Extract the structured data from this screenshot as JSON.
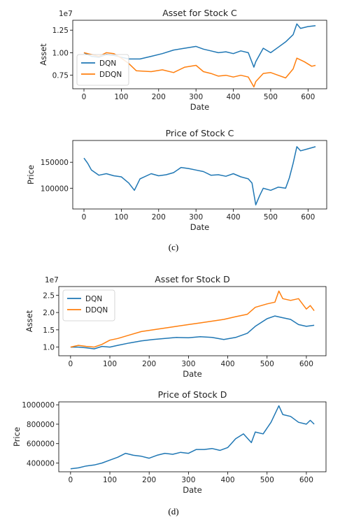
{
  "captions": {
    "c": "(c)",
    "d": "(d)"
  },
  "colors": {
    "dqn": "#1f77b4",
    "ddqn": "#ff7f0e"
  },
  "chart_data": [
    {
      "id": "asset_c",
      "type": "line",
      "title": "Asset for Stock C",
      "xlabel": "Date",
      "ylabel": "Asset",
      "offset_text": "1e7",
      "xlim": [
        -30,
        650
      ],
      "ylim": [
        0.6,
        1.36
      ],
      "xticks": [
        0,
        100,
        200,
        300,
        400,
        500,
        600
      ],
      "yticks": [
        0.75,
        1.0,
        1.25
      ],
      "ytick_labels": [
        "0.75",
        "1.00",
        "1.25"
      ],
      "legend": "lower-left",
      "series": [
        {
          "name": "DQN",
          "color": "#1f77b4",
          "x": [
            0,
            20,
            40,
            60,
            80,
            100,
            120,
            150,
            180,
            210,
            240,
            270,
            300,
            320,
            340,
            360,
            380,
            400,
            420,
            440,
            455,
            460,
            480,
            500,
            520,
            540,
            560,
            570,
            580,
            600,
            620
          ],
          "y": [
            1.0,
            0.96,
            0.95,
            0.98,
            0.97,
            0.95,
            0.93,
            0.93,
            0.96,
            0.99,
            1.03,
            1.05,
            1.07,
            1.04,
            1.02,
            1.0,
            1.01,
            0.99,
            1.02,
            1.0,
            0.84,
            0.9,
            1.05,
            1.0,
            1.06,
            1.12,
            1.2,
            1.32,
            1.27,
            1.29,
            1.3
          ]
        },
        {
          "name": "DDQN",
          "color": "#ff7f0e",
          "x": [
            0,
            20,
            40,
            60,
            80,
            100,
            120,
            140,
            180,
            210,
            240,
            270,
            300,
            320,
            340,
            360,
            380,
            400,
            420,
            440,
            455,
            460,
            480,
            500,
            520,
            540,
            560,
            570,
            590,
            610,
            620
          ],
          "y": [
            1.0,
            0.98,
            0.96,
            1.0,
            0.99,
            0.94,
            0.88,
            0.8,
            0.79,
            0.81,
            0.78,
            0.84,
            0.86,
            0.79,
            0.77,
            0.74,
            0.75,
            0.73,
            0.75,
            0.73,
            0.62,
            0.68,
            0.77,
            0.78,
            0.75,
            0.72,
            0.82,
            0.94,
            0.9,
            0.85,
            0.86
          ]
        }
      ]
    },
    {
      "id": "price_c",
      "type": "line",
      "title": "Price of Stock C",
      "xlabel": "Date",
      "ylabel": "Price",
      "xlim": [
        -30,
        650
      ],
      "ylim": [
        60000,
        192000
      ],
      "xticks": [
        0,
        100,
        200,
        300,
        400,
        500,
        600
      ],
      "yticks": [
        100000,
        150000
      ],
      "ytick_labels": [
        "100000",
        "150000"
      ],
      "series": [
        {
          "name": "",
          "color": "#1f77b4",
          "x": [
            0,
            10,
            20,
            40,
            60,
            80,
            100,
            120,
            135,
            150,
            180,
            200,
            220,
            240,
            260,
            280,
            300,
            320,
            340,
            360,
            380,
            400,
            420,
            440,
            450,
            460,
            470,
            480,
            500,
            520,
            540,
            550,
            560,
            570,
            580,
            600,
            620
          ],
          "y": [
            158000,
            148000,
            135000,
            125000,
            128000,
            124000,
            122000,
            110000,
            96000,
            118000,
            128000,
            124000,
            126000,
            130000,
            140000,
            138000,
            135000,
            132000,
            125000,
            126000,
            123000,
            128000,
            122000,
            118000,
            110000,
            68000,
            85000,
            100000,
            96000,
            102000,
            100000,
            120000,
            148000,
            180000,
            172000,
            176000,
            180000
          ]
        }
      ]
    },
    {
      "id": "asset_d",
      "type": "line",
      "title": "Asset for Stock D",
      "xlabel": "Date",
      "ylabel": "Asset",
      "offset_text": "1e7",
      "xlim": [
        -30,
        650
      ],
      "ylim": [
        0.75,
        2.75
      ],
      "xticks": [
        0,
        100,
        200,
        300,
        400,
        500,
        600
      ],
      "yticks": [
        1.0,
        1.5,
        2.0,
        2.5
      ],
      "ytick_labels": [
        "1.0",
        "1.5",
        "2.0",
        "2.5"
      ],
      "legend": "upper-left",
      "series": [
        {
          "name": "DQN",
          "color": "#1f77b4",
          "x": [
            0,
            20,
            40,
            60,
            80,
            100,
            120,
            150,
            180,
            210,
            240,
            270,
            300,
            330,
            360,
            390,
            420,
            450,
            470,
            500,
            520,
            540,
            560,
            580,
            600,
            620
          ],
          "y": [
            1.0,
            1.0,
            0.98,
            0.95,
            1.02,
            1.0,
            1.05,
            1.12,
            1.18,
            1.22,
            1.25,
            1.28,
            1.27,
            1.3,
            1.28,
            1.22,
            1.28,
            1.4,
            1.6,
            1.82,
            1.9,
            1.85,
            1.8,
            1.65,
            1.6,
            1.63
          ]
        },
        {
          "name": "DDQN",
          "color": "#ff7f0e",
          "x": [
            0,
            20,
            40,
            60,
            80,
            100,
            120,
            150,
            180,
            210,
            240,
            270,
            300,
            330,
            360,
            390,
            420,
            450,
            470,
            500,
            520,
            530,
            540,
            560,
            580,
            600,
            610,
            620
          ],
          "y": [
            1.0,
            1.05,
            1.02,
            1.0,
            1.08,
            1.2,
            1.25,
            1.35,
            1.45,
            1.5,
            1.55,
            1.6,
            1.65,
            1.7,
            1.75,
            1.8,
            1.88,
            1.95,
            2.15,
            2.25,
            2.3,
            2.62,
            2.4,
            2.35,
            2.4,
            2.1,
            2.2,
            2.05
          ]
        }
      ]
    },
    {
      "id": "price_d",
      "type": "line",
      "title": "Price of Stock D",
      "xlabel": "Date",
      "ylabel": "Price",
      "xlim": [
        -30,
        650
      ],
      "ylim": [
        310000,
        1030000
      ],
      "xticks": [
        0,
        100,
        200,
        300,
        400,
        500,
        600
      ],
      "yticks": [
        400000,
        600000,
        800000,
        1000000
      ],
      "ytick_labels": [
        "400000",
        "600000",
        "800000",
        "1000000"
      ],
      "series": [
        {
          "name": "",
          "color": "#1f77b4",
          "x": [
            0,
            20,
            40,
            60,
            80,
            100,
            120,
            140,
            160,
            180,
            200,
            220,
            240,
            260,
            280,
            300,
            320,
            340,
            360,
            380,
            400,
            420,
            440,
            460,
            470,
            490,
            510,
            530,
            540,
            560,
            580,
            600,
            610,
            620
          ],
          "y": [
            340000,
            350000,
            370000,
            380000,
            400000,
            430000,
            460000,
            500000,
            480000,
            470000,
            450000,
            480000,
            500000,
            490000,
            510000,
            500000,
            540000,
            540000,
            550000,
            530000,
            560000,
            650000,
            700000,
            610000,
            720000,
            700000,
            820000,
            990000,
            900000,
            880000,
            820000,
            800000,
            840000,
            800000
          ]
        }
      ]
    }
  ]
}
